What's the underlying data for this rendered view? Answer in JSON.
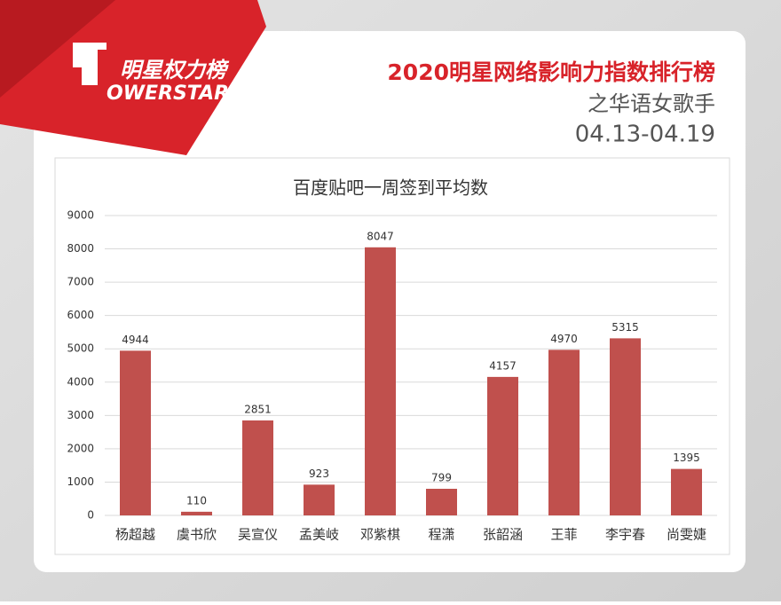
{
  "header": {
    "logo_cn": "明星权力榜",
    "logo_en": "OWERSTAR",
    "title": "2020明星网络影响力指数排行榜",
    "subtitle": "之华语女歌手",
    "date": "04.13-04.19"
  },
  "chart_data": {
    "type": "bar",
    "title": "百度贴吧一周签到平均数",
    "categories": [
      "杨超越",
      "虞书欣",
      "吴宣仪",
      "孟美岐",
      "邓紫棋",
      "程潇",
      "张韶涵",
      "王菲",
      "李宇春",
      "尚雯婕"
    ],
    "values": [
      4944,
      110,
      2851,
      923,
      8047,
      799,
      4157,
      4970,
      5315,
      1395
    ],
    "color": "#c0504d",
    "ylim": [
      0,
      9000
    ],
    "yticks": [
      0,
      1000,
      2000,
      3000,
      4000,
      5000,
      6000,
      7000,
      8000,
      9000
    ],
    "grid": true
  }
}
